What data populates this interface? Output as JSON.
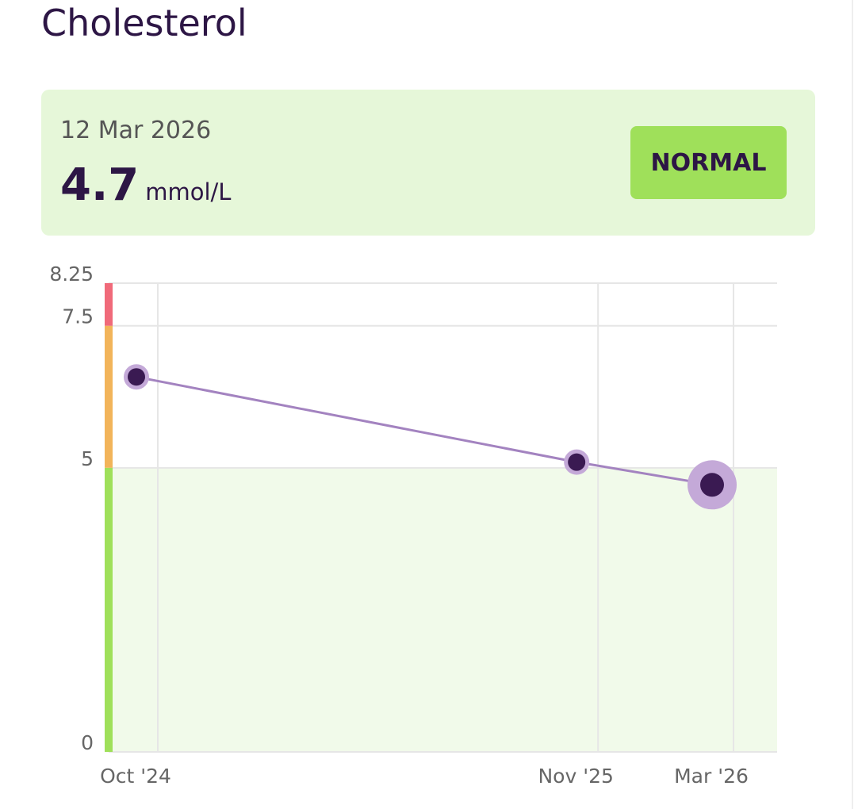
{
  "title": "Cholesterol",
  "latest": {
    "date": "12 Mar 2026",
    "value": "4.7",
    "unit": "mmol/L",
    "status": "NORMAL"
  },
  "chart_data": {
    "type": "line",
    "x": [
      "Oct '24",
      "Nov '25",
      "Mar '26"
    ],
    "series": [
      {
        "color": "#a383c0",
        "values": [
          6.6,
          5.1,
          4.7
        ]
      }
    ],
    "ylim": [
      0,
      8.25
    ],
    "yticks": [
      0,
      5,
      7.5,
      8.25
    ],
    "xticks": [
      "Oct '24",
      "Nov '25",
      "Mar '26"
    ],
    "bands": [
      {
        "from": 0,
        "to": 5,
        "color": "#9fe05a",
        "fill": "#f1faea"
      },
      {
        "from": 5,
        "to": 7.5,
        "color": "#f2b45a"
      },
      {
        "from": 7.5,
        "to": 8.25,
        "color": "#f06a7a"
      }
    ],
    "grid": true
  }
}
